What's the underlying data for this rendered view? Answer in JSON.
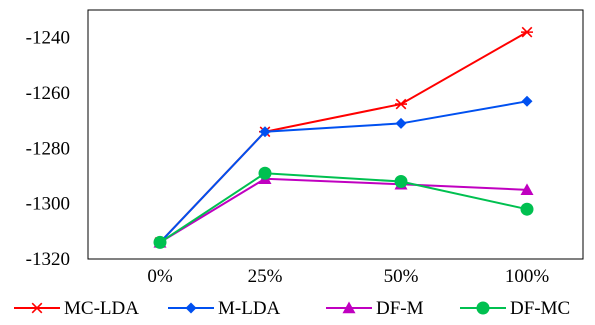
{
  "chart_data": {
    "type": "line",
    "title": "",
    "xlabel": "",
    "ylabel": "",
    "categories": [
      "0%",
      "25%",
      "50%",
      "100%"
    ],
    "ylim": [
      -1320,
      -1230
    ],
    "yticks": [
      -1240,
      -1260,
      -1280,
      -1300,
      -1320
    ],
    "grid": false,
    "legend_position": "bottom",
    "series": [
      {
        "name": "MC-LDA",
        "values": [
          -1314,
          -1274,
          -1264,
          -1238
        ],
        "color": "#ff0000",
        "marker": "asterisk"
      },
      {
        "name": "M-LDA",
        "values": [
          -1314,
          -1274,
          -1271,
          -1263
        ],
        "color": "#0050f0",
        "marker": "diamond"
      },
      {
        "name": "DF-M",
        "values": [
          -1314,
          -1291,
          -1293,
          -1295
        ],
        "color": "#c000c0",
        "marker": "triangle"
      },
      {
        "name": "DF-MC",
        "values": [
          -1314,
          -1289,
          -1292,
          -1302
        ],
        "color": "#00c050",
        "marker": "circle"
      }
    ]
  }
}
